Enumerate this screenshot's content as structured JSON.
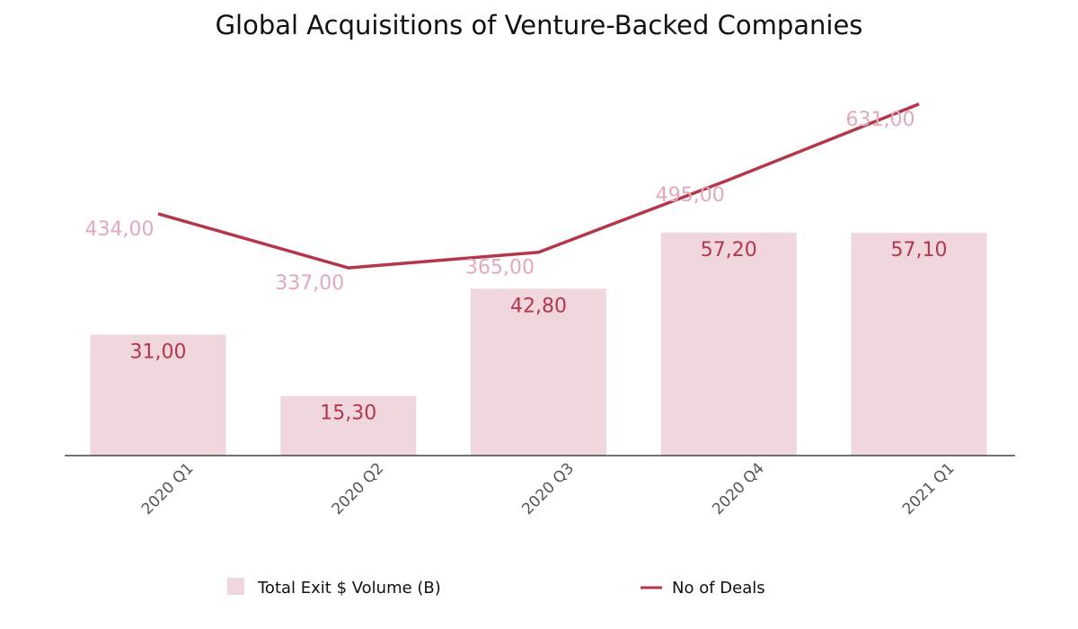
{
  "chart_data": {
    "type": "bar+line",
    "title": "Global Acquisitions of Venture-Backed Companies",
    "categories": [
      "2020 Q1",
      "2020 Q2",
      "2020 Q3",
      "2020 Q4",
      "2021 Q1"
    ],
    "series": [
      {
        "name": "Total Exit $ Volume (B)",
        "type": "bar",
        "values": [
          31.0,
          15.3,
          42.8,
          57.2,
          57.1
        ],
        "labels": [
          "31,00",
          "15,30",
          "42,80",
          "57,20",
          "57,10"
        ],
        "color": "#f0d7de",
        "label_color": "#b5364b",
        "ylim": [
          0,
          103
        ]
      },
      {
        "name": "No of Deals",
        "type": "line",
        "values": [
          434,
          337,
          365,
          495,
          631
        ],
        "labels": [
          "434,00",
          "337,00",
          "365,00",
          "495,00",
          "631,00"
        ],
        "color": "#b5364b",
        "label_color": "#e3a9b9",
        "ylim": [
          0,
          721
        ]
      }
    ],
    "xlabel": "",
    "ylabel": "",
    "grid": false,
    "legend_position": "bottom"
  }
}
